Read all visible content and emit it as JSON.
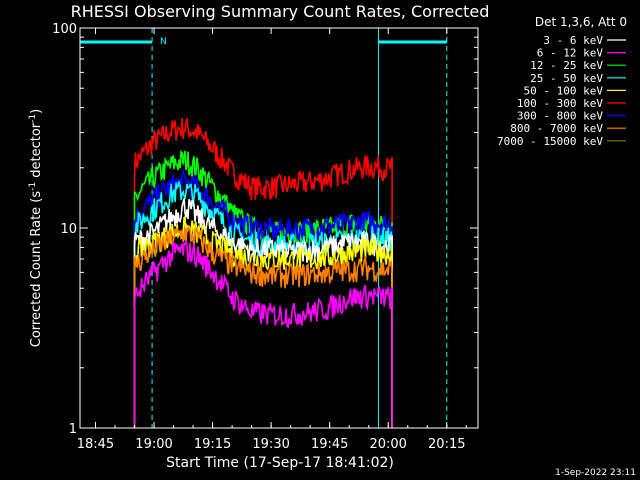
{
  "chart_data": {
    "type": "line",
    "title": "RHESSI Observing Summary Count Rates, Corrected",
    "xlabel": "Start Time (17-Sep-17 18:41:02)",
    "ylabel": "Corrected Count Rate (s⁻¹ detector⁻¹)",
    "ylabel_base": "Corrected Count Rate (s",
    "ylabel_mid": " detector",
    "ylabel_end": ")",
    "ylabel_sup": "-1",
    "y_scale": "log",
    "ylim": [
      1,
      100
    ],
    "xlim": [
      "18:41:02",
      "20:23:00"
    ],
    "x_ticks": [
      "18:45",
      "19:00",
      "19:15",
      "19:30",
      "19:45",
      "20:00",
      "20:15"
    ],
    "y_ticks": [
      "1",
      "10",
      "100"
    ],
    "legend_title": "Det 1,3,6, Att 0",
    "legend_position": "top-right",
    "timestamp": "1-Sep-2022 23:11",
    "night_label": "N",
    "night_bars": [
      {
        "start": "18:41:02",
        "end": "18:59:30"
      },
      {
        "start": "19:57:30",
        "end": "20:15:00"
      }
    ],
    "day_lines": [
      "18:41:02",
      "18:59:30",
      "19:57:30",
      "20:15:00"
    ],
    "series": [
      {
        "name": "3 - 6 keV",
        "color": "#ffffff",
        "x": [
          "18:55",
          "19:00",
          "19:05",
          "19:08",
          "19:11",
          "19:15",
          "19:20",
          "19:25",
          "19:30",
          "19:35",
          "19:40",
          "19:45",
          "19:50",
          "19:55",
          "20:00",
          "20:01"
        ],
        "y": [
          8.5,
          9.5,
          11.5,
          13,
          11.5,
          10,
          8.5,
          7.8,
          7.8,
          7.6,
          7.8,
          8.0,
          8.5,
          8.4,
          8.2,
          8.2
        ]
      },
      {
        "name": "6 - 12 keV",
        "color": "#ff00ff",
        "x": [
          "18:55",
          "19:00",
          "19:05",
          "19:08",
          "19:11",
          "19:15",
          "19:20",
          "19:25",
          "19:30",
          "19:35",
          "19:40",
          "19:45",
          "19:50",
          "19:55",
          "20:00",
          "20:01"
        ],
        "y": [
          4.5,
          6.0,
          7.5,
          7.8,
          7.3,
          6.0,
          4.5,
          3.8,
          3.7,
          3.7,
          3.8,
          4.0,
          4.5,
          4.6,
          4.5,
          4.5
        ]
      },
      {
        "name": "12 - 25 keV",
        "color": "#00ff00",
        "x": [
          "18:55",
          "19:00",
          "19:05",
          "19:08",
          "19:11",
          "19:15",
          "19:20",
          "19:25",
          "19:30",
          "19:35",
          "19:40",
          "19:45",
          "19:50",
          "19:55",
          "20:00",
          "20:01"
        ],
        "y": [
          14,
          18,
          21,
          22,
          20,
          16,
          12,
          10,
          9.5,
          9.5,
          9.8,
          10,
          10.5,
          10.5,
          10.3,
          10.3
        ]
      },
      {
        "name": "25 - 50 keV",
        "color": "#00ffff",
        "x": [
          "18:55",
          "19:00",
          "19:05",
          "19:08",
          "19:11",
          "19:15",
          "19:20",
          "19:25",
          "19:30",
          "19:35",
          "19:40",
          "19:45",
          "19:50",
          "19:55",
          "20:00",
          "20:01"
        ],
        "y": [
          10,
          12.5,
          15,
          15.5,
          14.5,
          12,
          9.5,
          8.5,
          8.2,
          8.2,
          8.4,
          8.5,
          8.8,
          9.0,
          8.8,
          8.8
        ]
      },
      {
        "name": "50 - 100 keV",
        "color": "#ffff00",
        "x": [
          "18:55",
          "19:00",
          "19:05",
          "19:08",
          "19:11",
          "19:15",
          "19:20",
          "19:25",
          "19:30",
          "19:35",
          "19:40",
          "19:45",
          "19:50",
          "19:55",
          "20:00",
          "20:01"
        ],
        "y": [
          7.5,
          8.5,
          9.5,
          10,
          9.5,
          8.5,
          7.5,
          7.0,
          7.0,
          7.0,
          7.0,
          7.2,
          7.5,
          7.8,
          7.5,
          7.5
        ]
      },
      {
        "name": "100 - 300 keV",
        "color": "#ff0000",
        "x": [
          "18:55",
          "19:00",
          "19:05",
          "19:08",
          "19:11",
          "19:15",
          "19:20",
          "19:25",
          "19:30",
          "19:35",
          "19:40",
          "19:45",
          "19:50",
          "19:55",
          "20:00",
          "20:01"
        ],
        "y": [
          21,
          27,
          31,
          32,
          30,
          25,
          19,
          16,
          16,
          16.5,
          17,
          18,
          19.5,
          20.5,
          20,
          20
        ]
      },
      {
        "name": "300 - 800 keV",
        "color": "#0000ff",
        "x": [
          "18:55",
          "19:00",
          "19:05",
          "19:08",
          "19:11",
          "19:15",
          "19:20",
          "19:25",
          "19:30",
          "19:35",
          "19:40",
          "19:45",
          "19:50",
          "19:55",
          "20:00",
          "20:01"
        ],
        "y": [
          11,
          14,
          16.5,
          17,
          16,
          13.5,
          11,
          10,
          9.8,
          9.8,
          10,
          10.2,
          10.5,
          10.8,
          10.5,
          10.5
        ]
      },
      {
        "name": "800 - 7000 keV",
        "color": "#ff8000",
        "x": [
          "18:55",
          "19:00",
          "19:05",
          "19:08",
          "19:11",
          "19:15",
          "19:20",
          "19:25",
          "19:30",
          "19:35",
          "19:40",
          "19:45",
          "19:50",
          "19:55",
          "20:00",
          "20:01"
        ],
        "y": [
          6.5,
          7.8,
          9.0,
          9.5,
          9.0,
          7.5,
          6.5,
          6.0,
          5.8,
          5.8,
          5.9,
          6.0,
          6.2,
          6.3,
          6.2,
          6.2
        ]
      },
      {
        "name": "7000 - 15000 keV",
        "color": "#808000",
        "x": [],
        "y": []
      }
    ]
  }
}
